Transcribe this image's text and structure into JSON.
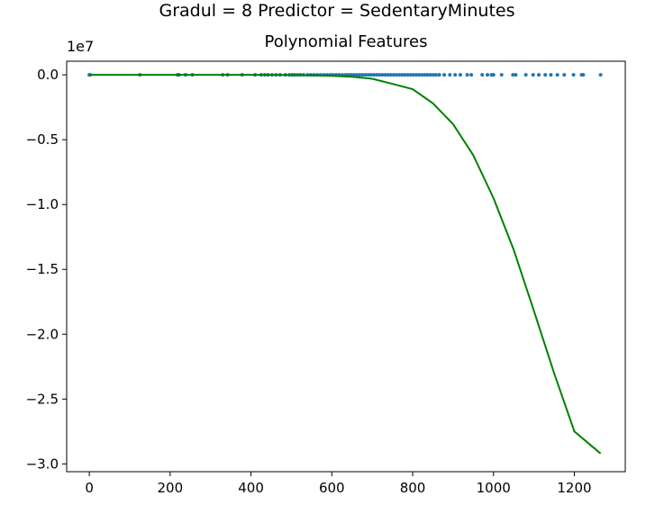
{
  "suptitle": "Gradul = 8 Predictor = SedentaryMinutes",
  "chart_data": {
    "type": "scatter",
    "title": "Polynomial Features",
    "xlabel": "",
    "ylabel": "",
    "offset_label": "1e7",
    "xlim": [
      -56,
      1326
    ],
    "ylim": [
      -3.06,
      0.105
    ],
    "xticks": [
      0,
      200,
      400,
      600,
      800,
      1000,
      1200
    ],
    "xtick_labels": [
      "0",
      "200",
      "400",
      "600",
      "800",
      "1000",
      "1200"
    ],
    "yticks": [
      0.0,
      -0.5,
      -1.0,
      -1.5,
      -2.0,
      -2.5,
      -3.0
    ],
    "ytick_labels": [
      "0.0",
      "−0.5",
      "−1.0",
      "−1.5",
      "−2.0",
      "−2.5",
      "−3.0"
    ],
    "grid": false,
    "colors": {
      "points": "#1f77b4",
      "curve": "#008000"
    },
    "series": [
      {
        "kind": "scatter",
        "x": [
          0,
          2,
          125,
          218,
          222,
          238,
          255,
          330,
          342,
          378,
          410,
          425,
          434,
          442,
          452,
          462,
          472,
          485,
          495,
          502,
          508,
          515,
          522,
          530,
          540,
          548,
          556,
          564,
          572,
          580,
          588,
          596,
          603,
          611,
          618,
          626,
          634,
          641,
          648,
          655,
          662,
          669,
          676,
          683,
          690,
          697,
          704,
          711,
          718,
          725,
          732,
          739,
          746,
          753,
          760,
          767,
          774,
          781,
          788,
          795,
          802,
          809,
          816,
          823,
          830,
          837,
          844,
          851,
          858,
          866,
          878,
          892,
          905,
          918,
          935,
          945,
          972,
          985,
          995,
          1000,
          1020,
          1048,
          1055,
          1080,
          1098,
          1112,
          1128,
          1142,
          1158,
          1175,
          1198,
          1218,
          1222,
          1265
        ],
        "y": [
          0,
          0,
          0,
          0,
          0,
          0,
          0,
          0,
          0,
          0,
          0,
          0,
          0,
          0,
          0,
          0,
          0,
          0,
          0,
          0,
          0,
          0,
          0,
          0,
          0,
          0,
          0,
          0,
          0,
          0,
          0,
          0,
          0,
          0,
          0,
          0,
          0,
          0,
          0,
          0,
          0,
          0,
          0,
          0,
          0,
          0,
          0,
          0,
          0,
          0,
          0,
          0,
          0,
          0,
          0,
          0,
          0,
          0,
          0,
          0,
          0,
          0,
          0,
          0,
          0,
          0,
          0,
          0,
          0,
          0,
          0,
          0,
          0,
          0,
          0,
          0,
          0,
          0,
          0,
          0,
          0,
          0,
          0,
          0,
          0,
          0,
          0,
          0,
          0,
          0,
          0,
          0,
          0,
          0
        ]
      },
      {
        "kind": "line",
        "x": [
          0,
          100,
          200,
          300,
          400,
          500,
          550,
          600,
          650,
          700,
          750,
          800,
          850,
          900,
          950,
          1000,
          1050,
          1100,
          1150,
          1200,
          1265
        ],
        "y": [
          0.0,
          0.0,
          0.0,
          0.0,
          0.0,
          -0.002,
          -0.004,
          -0.008,
          -0.015,
          -0.03,
          -0.07,
          -0.11,
          -0.22,
          -0.38,
          -0.62,
          -0.95,
          -1.35,
          -1.82,
          -2.3,
          -2.75,
          -2.92
        ]
      }
    ]
  }
}
